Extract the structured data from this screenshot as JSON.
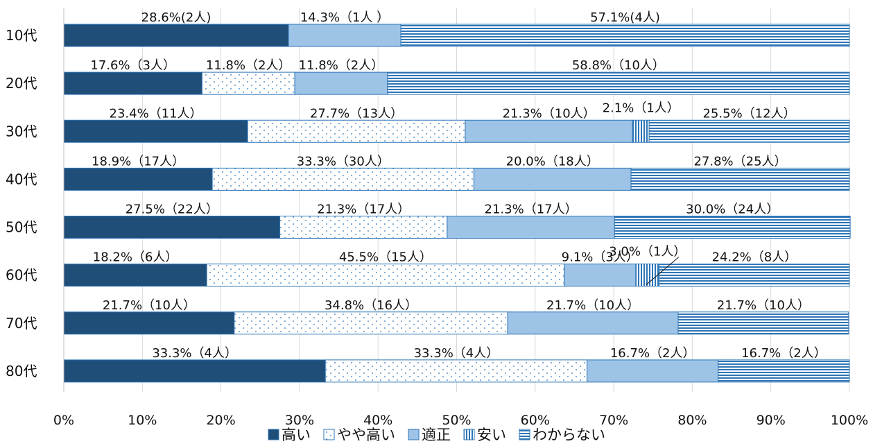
{
  "chart_data": {
    "type": "bar",
    "orientation": "horizontal",
    "stacked": true,
    "percent": true,
    "categories": [
      "10代",
      "20代",
      "30代",
      "40代",
      "50代",
      "60代",
      "70代",
      "80代"
    ],
    "series": [
      {
        "name": "高い",
        "color": "#1f4e79",
        "pattern": "solid",
        "values": [
          28.6,
          17.6,
          23.4,
          18.9,
          27.5,
          18.2,
          21.7,
          33.3
        ],
        "labels": [
          "28.6%(2人)",
          "17.6%（3人）",
          "23.4%（11人）",
          "18.9%（17人）",
          "27.5%（22人）",
          "18.2%（6人）",
          "21.7%（10人）",
          "33.3%（4人）"
        ]
      },
      {
        "name": "やや高い",
        "color": "#2e75b6",
        "pattern": "dots",
        "values": [
          0,
          11.8,
          27.7,
          33.3,
          21.3,
          45.5,
          34.8,
          33.3
        ],
        "labels": [
          "",
          "11.8%（2人）",
          "27.7%（13人）",
          "33.3%（30人）",
          "21.3%（17人）",
          "45.5%（15人）",
          "34.8%（16人）",
          "33.3%（4人）"
        ]
      },
      {
        "name": "適正",
        "color": "#9dc3e6",
        "pattern": "solid",
        "values": [
          14.3,
          11.8,
          21.3,
          20.0,
          21.3,
          9.1,
          21.7,
          16.7
        ],
        "labels": [
          "14.3%（1人 ）",
          "11.8%（2人）",
          "21.3%（10人）",
          "20.0%（18人）",
          "21.3%（17人）",
          "9.1%（3人）",
          "21.7%（10人）",
          "16.7%（2人）"
        ]
      },
      {
        "name": "安い",
        "color": "#2e75b6",
        "pattern": "vertical-lines",
        "values": [
          0,
          0,
          2.1,
          0,
          0,
          3.0,
          0,
          0
        ],
        "labels": [
          "",
          "",
          "2.1%（1人）",
          "",
          "",
          "3.0%（1人）",
          "",
          ""
        ]
      },
      {
        "name": "わからない",
        "color": "#2e75b6",
        "pattern": "horizontal-lines",
        "values": [
          57.1,
          58.8,
          25.5,
          27.8,
          30.0,
          24.2,
          21.7,
          16.7
        ],
        "labels": [
          "57.1%(4人)",
          "58.8%（10人）",
          "25.5%（12人）",
          "27.8%（25人）",
          "30.0%（24人）",
          "24.2%（8人）",
          "21.7%（10人）",
          "16.7%（2人）"
        ]
      }
    ],
    "xlim": [
      0,
      100
    ],
    "xticks": [
      "0%",
      "10%",
      "20%",
      "30%",
      "40%",
      "50%",
      "60%",
      "70%",
      "80%",
      "90%",
      "100%"
    ],
    "grid": true,
    "legend": "bottom"
  }
}
